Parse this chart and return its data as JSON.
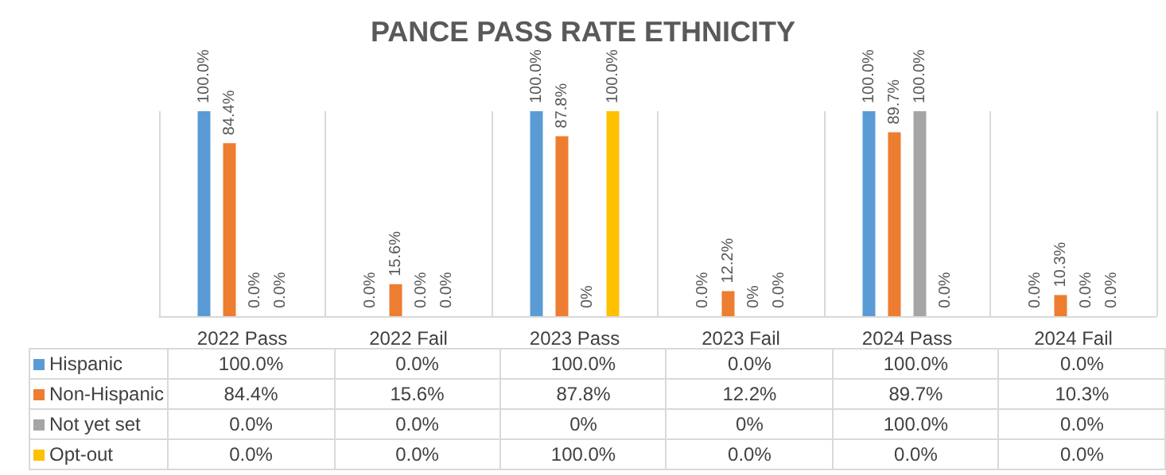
{
  "chart_data": {
    "type": "bar",
    "title": "PANCE PASS RATE ETHNICITY",
    "categories": [
      "2022 Pass",
      "2022 Fail",
      "2023 Pass",
      "2023 Fail",
      "2024 Pass",
      "2024 Fail"
    ],
    "series": [
      {
        "name": "Hispanic",
        "color": "#5b9bd5",
        "values": [
          100,
          0,
          100,
          0,
          100,
          0
        ],
        "value_labels": [
          "100.0%",
          "0.0%",
          "100.0%",
          "0.0%",
          "100.0%",
          "0.0%"
        ]
      },
      {
        "name": "Non-Hispanic",
        "color": "#ed7d31",
        "values": [
          84.4,
          15.6,
          87.8,
          12.2,
          89.7,
          10.3
        ],
        "value_labels": [
          "84.4%",
          "15.6%",
          "87.8%",
          "12.2%",
          "89.7%",
          "10.3%"
        ]
      },
      {
        "name": "Not yet set",
        "color": "#a5a5a5",
        "values": [
          0,
          0,
          0,
          0,
          100,
          0
        ],
        "value_labels": [
          "0.0%",
          "0.0%",
          "0%",
          "0%",
          "100.0%",
          "0.0%"
        ]
      },
      {
        "name": "Opt-out",
        "color": "#ffc000",
        "values": [
          0,
          0,
          100,
          0,
          0,
          0
        ],
        "value_labels": [
          "0.0%",
          "0.0%",
          "100.0%",
          "0.0%",
          "0.0%",
          "0.0%"
        ]
      }
    ],
    "grid": "x",
    "legend": "bottom"
  }
}
